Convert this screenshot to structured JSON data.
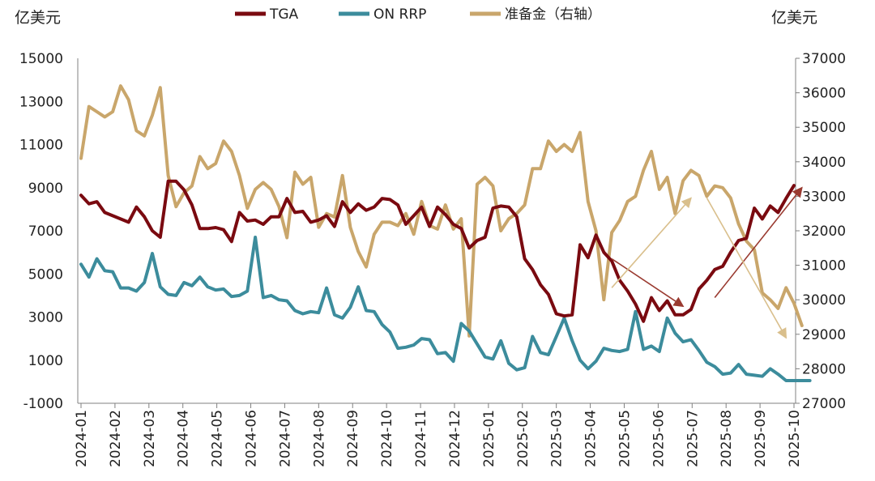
{
  "chart_data": {
    "type": "line",
    "title": "",
    "y_left_unit": "亿美元",
    "y_right_unit": "亿美元",
    "ylim_left": [
      -1000,
      15000
    ],
    "ylim_right": [
      27000,
      37000
    ],
    "yticks_left": [
      "15000",
      "13000",
      "11000",
      "9000",
      "7000",
      "5000",
      "3000",
      "1000",
      "-1000"
    ],
    "yticks_right": [
      "37000",
      "36000",
      "35000",
      "34000",
      "33000",
      "32000",
      "31000",
      "30000",
      "29000",
      "28000",
      "27000"
    ],
    "x_tick_labels": [
      "2024-01",
      "2024-02",
      "2024-03",
      "2024-04",
      "2024-05",
      "2024-06",
      "2024-07",
      "2024-08",
      "2024-09",
      "2024-10",
      "2024-11",
      "2024-12",
      "2025-01",
      "2025-02",
      "2025-03",
      "2025-04",
      "2025-05",
      "2025-06",
      "2025-07",
      "2025-08",
      "2025-09",
      "2025-10"
    ],
    "legend": [
      "TGA",
      "ON RRP",
      "准备金（右轴）"
    ],
    "colors": {
      "TGA": "#7a0a10",
      "ON RRP": "#3c8c9c",
      "reserves": "#c9a66b",
      "arrow_red": "#9a3a30",
      "arrow_gold": "#d9bf8c"
    },
    "series": [
      {
        "name": "TGA",
        "axis": "left",
        "values": [
          8650,
          8250,
          8350,
          7850,
          7700,
          7550,
          7400,
          8100,
          7650,
          7000,
          6700,
          9300,
          9300,
          8900,
          8200,
          7100,
          7100,
          7150,
          7050,
          6500,
          7850,
          7450,
          7500,
          7300,
          7650,
          7650,
          8500,
          7850,
          7900,
          7400,
          7500,
          7700,
          7200,
          8350,
          7850,
          8250,
          7950,
          8100,
          8500,
          8450,
          8200,
          7300,
          7700,
          8100,
          7200,
          8100,
          7750,
          7300,
          7100,
          6200,
          6550,
          6700,
          8050,
          8150,
          8100,
          7650,
          5700,
          5200,
          4500,
          4050,
          3150,
          3050,
          3100,
          6350,
          5750,
          6800,
          6000,
          5600,
          4700,
          4200,
          3600,
          2800,
          3900,
          3300,
          3750,
          3100,
          3100,
          3350,
          4300,
          4700,
          5200,
          5350,
          6000,
          6550,
          6650,
          8050,
          7550,
          8150,
          7850,
          8500,
          9100
        ]
      },
      {
        "name": "ON RRP",
        "axis": "left",
        "values": [
          5450,
          4850,
          5700,
          5150,
          5100,
          4350,
          4350,
          4200,
          4600,
          5950,
          4400,
          4050,
          4000,
          4600,
          4450,
          4850,
          4400,
          4250,
          4300,
          3950,
          4000,
          4200,
          6700,
          3900,
          4000,
          3800,
          3750,
          3300,
          3150,
          3250,
          3200,
          4350,
          3100,
          2950,
          3450,
          4400,
          3300,
          3250,
          2650,
          2300,
          1550,
          1600,
          1700,
          2000,
          1950,
          1300,
          1350,
          950,
          2700,
          2350,
          1750,
          1150,
          1050,
          1900,
          850,
          550,
          650,
          2100,
          1350,
          1250,
          2100,
          2950,
          1900,
          1000,
          600,
          950,
          1550,
          1450,
          1400,
          1500,
          3250,
          1500,
          1650,
          1400,
          2950,
          2250,
          1850,
          1950,
          1450,
          900,
          700,
          350,
          400,
          800,
          350,
          300,
          250,
          600,
          350,
          50,
          50,
          50,
          50
        ]
      },
      {
        "name": "准备金（右轴）",
        "axis": "right",
        "values": [
          34100,
          35600,
          35450,
          35300,
          35450,
          36200,
          35800,
          34900,
          34750,
          35350,
          36150,
          33600,
          32700,
          33100,
          33300,
          34150,
          33800,
          33950,
          34600,
          34300,
          33600,
          32650,
          33200,
          33400,
          33200,
          32700,
          31800,
          33700,
          33350,
          33550,
          32100,
          32500,
          32400,
          33600,
          32100,
          31400,
          30950,
          31900,
          32250,
          32250,
          32150,
          32500,
          31900,
          32850,
          32150,
          32050,
          32750,
          32050,
          32350,
          28950,
          33350,
          33550,
          33300,
          32000,
          32350,
          32500,
          32750,
          33800,
          33800,
          34600,
          34300,
          34500,
          34300,
          34850,
          32850,
          32000,
          30000,
          31950,
          32300,
          32850,
          33000,
          33750,
          34300,
          33200,
          33550,
          32500,
          33450,
          33750,
          33600,
          33000,
          33300,
          33250,
          32950,
          32200,
          31700,
          31450,
          30200,
          30000,
          29750,
          30350,
          29900,
          29250
        ]
      }
    ],
    "annotations": [
      {
        "type": "arrow",
        "color": "red",
        "from": {
          "x_index": 67,
          "y": 5700,
          "axis": "left"
        },
        "to": {
          "x_index": 76,
          "y": 3500,
          "axis": "left"
        }
      },
      {
        "type": "arrow",
        "color": "red",
        "from": {
          "x_index": 80,
          "y": 3900,
          "axis": "left"
        },
        "to": {
          "x_index": 91,
          "y": 9000,
          "axis": "left"
        }
      },
      {
        "type": "arrow",
        "color": "gold",
        "from": {
          "x_index": 67,
          "y": 30350,
          "axis": "right"
        },
        "to": {
          "x_index": 77,
          "y": 32950,
          "axis": "right"
        }
      },
      {
        "type": "arrow",
        "color": "gold",
        "from": {
          "x_index": 79,
          "y": 32950,
          "axis": "right"
        },
        "to": {
          "x_index": 89,
          "y": 28900,
          "axis": "right"
        }
      }
    ]
  }
}
